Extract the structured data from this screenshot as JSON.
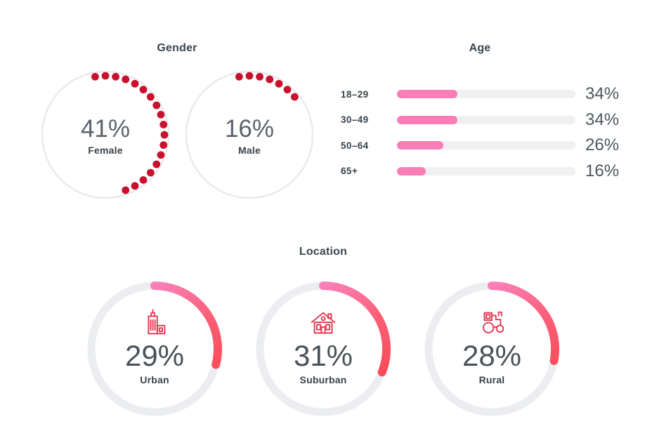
{
  "colors": {
    "dot_red": "#C8112C",
    "bar_pink": "#FB7DB5",
    "bar_track": "#F0F0F2",
    "ring_track": "#ECEDF0",
    "arc_start_pink": "#F980B8",
    "arc_mid": "#FB5E75",
    "arc_end_red": "#FB4751",
    "icon_red": "#E23A52",
    "title_text": "#3D454D",
    "gender_value_text": "#5A626B",
    "location_value_text": "#49525B",
    "age_value_text": "#4E565E",
    "label_text": "#39414A",
    "circle_outline": "#E9EAEE"
  },
  "chart_data": [
    {
      "type": "donut-dots",
      "title": "Gender",
      "legend_position": "inside",
      "series": [
        {
          "label": "Female",
          "value_pct": 41,
          "display": "41%",
          "dots": 18
        },
        {
          "label": "Male",
          "value_pct": 16,
          "display": "16%",
          "dots": 7
        }
      ]
    },
    {
      "type": "bar",
      "title": "Age",
      "orientation": "horizontal",
      "grid": false,
      "xlim": [
        0,
        100
      ],
      "categories": [
        "18–29",
        "30–49",
        "50–64",
        "65+"
      ],
      "values": [
        34,
        34,
        26,
        16
      ],
      "value_labels": [
        "34%",
        "34%",
        "26%",
        "16%"
      ]
    },
    {
      "type": "ring",
      "title": "Location",
      "series": [
        {
          "label": "Urban",
          "value_pct": 29,
          "display": "29%",
          "icon": "city-icon"
        },
        {
          "label": "Suburban",
          "value_pct": 31,
          "display": "31%",
          "icon": "house-icon"
        },
        {
          "label": "Rural",
          "value_pct": 28,
          "display": "28%",
          "icon": "tractor-icon"
        }
      ]
    }
  ]
}
